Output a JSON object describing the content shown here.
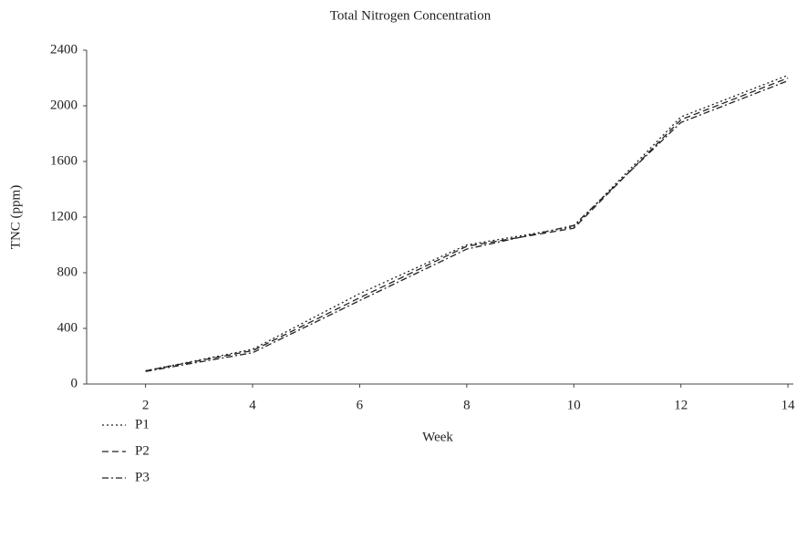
{
  "chart_data": {
    "type": "line",
    "title": "Total Nitrogen Concentration",
    "x_label": "Week",
    "y_label": "TNC (ppm)",
    "x": [
      2,
      4,
      6,
      8,
      10,
      12,
      14
    ],
    "xlim": [
      0.9,
      14.1
    ],
    "xticks": [
      2,
      4,
      6,
      8,
      10,
      12,
      14
    ],
    "ylim": [
      0,
      2400
    ],
    "yticks": [
      0,
      400,
      800,
      1200,
      1600,
      2000,
      2400
    ],
    "grid": false,
    "legend": "bottom-left",
    "series": [
      {
        "name": "P1",
        "color": "#222222",
        "line_style": "dotted",
        "values": [
          95,
          250,
          650,
          1000,
          1130,
          1920,
          2220
        ]
      },
      {
        "name": "P2",
        "color": "#222222",
        "line_style": "dashed",
        "values": [
          95,
          240,
          620,
          990,
          1120,
          1900,
          2200
        ]
      },
      {
        "name": "P3",
        "color": "#222222",
        "line_style": "dashdot",
        "values": [
          90,
          225,
          600,
          970,
          1140,
          1880,
          2180
        ]
      }
    ]
  }
}
